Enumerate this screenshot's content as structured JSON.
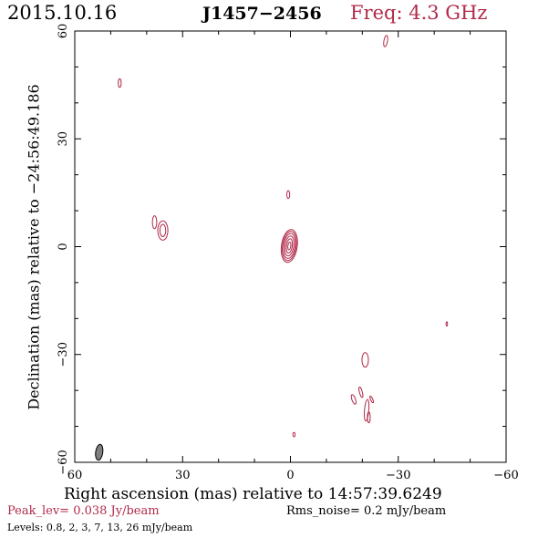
{
  "header": {
    "date": "2015.10.16",
    "source": "J1457−2456",
    "freq": "Freq: 4.3 GHz"
  },
  "footer": {
    "peak": "Peak_lev=  0.038 Jy/beam",
    "rms": "Rms_noise=  0.2 mJy/beam",
    "levels": "Levels: 0.8,    2,    3,    7,   13,   26 mJy/beam"
  },
  "colors": {
    "contour": "#b02a4a",
    "text_accent": "#b02a4a",
    "beam": "#808080"
  },
  "chart_data": {
    "type": "contour",
    "xlabel": "Right ascension (mas) relative to 14:57:39.6249",
    "ylabel": "Declination (mas) relative to −24:56:49.186",
    "xlim": [
      60,
      -60
    ],
    "ylim": [
      -60,
      60
    ],
    "xticks": [
      60,
      30,
      0,
      -30,
      -60
    ],
    "yticks": [
      -60,
      -30,
      0,
      30,
      60
    ],
    "xtick_labels": [
      "60",
      "30",
      "0",
      "−30",
      "−60"
    ],
    "ytick_labels": [
      "−60",
      "−30",
      "0",
      "30",
      "60"
    ],
    "contour_levels_mJy": [
      0.8,
      2,
      3,
      7,
      13,
      26
    ],
    "components": [
      {
        "x": 0.3,
        "y": 0.2,
        "levels": [
          {
            "rx": 2.2,
            "ry": 4.6,
            "rot": 8
          },
          {
            "rx": 1.9,
            "ry": 4.1,
            "rot": 8
          },
          {
            "rx": 1.6,
            "ry": 3.5,
            "rot": 8
          },
          {
            "rx": 1.2,
            "ry": 2.8,
            "rot": 8
          },
          {
            "rx": 0.8,
            "ry": 2.0,
            "rot": 8
          },
          {
            "rx": 0.4,
            "ry": 1.1,
            "rot": 8
          }
        ]
      },
      {
        "x": 35.5,
        "y": 4.5,
        "levels": [
          {
            "rx": 1.4,
            "ry": 2.7,
            "rot": 0
          },
          {
            "rx": 0.8,
            "ry": 1.7,
            "rot": 0
          }
        ]
      },
      {
        "x": 37.8,
        "y": 6.8,
        "levels": [
          {
            "rx": 0.6,
            "ry": 1.8,
            "rot": 0
          }
        ]
      },
      {
        "x": 47.5,
        "y": 45.5,
        "levels": [
          {
            "rx": 0.4,
            "ry": 1.2,
            "rot": 0
          }
        ]
      },
      {
        "x": 0.6,
        "y": 14.5,
        "levels": [
          {
            "rx": 0.4,
            "ry": 1.1,
            "rot": 0
          }
        ]
      },
      {
        "x": -26.5,
        "y": 57.2,
        "levels": [
          {
            "rx": 0.5,
            "ry": 1.6,
            "rot": 10
          }
        ]
      },
      {
        "x": -43.5,
        "y": -21.5,
        "levels": [
          {
            "rx": 0.2,
            "ry": 0.6,
            "rot": 0
          }
        ]
      },
      {
        "x": -20.8,
        "y": -31.5,
        "levels": [
          {
            "rx": 0.9,
            "ry": 2.0,
            "rot": 0
          }
        ]
      },
      {
        "x": -17.6,
        "y": -42.5,
        "levels": [
          {
            "rx": 0.5,
            "ry": 1.4,
            "rot": -20
          }
        ]
      },
      {
        "x": -19.6,
        "y": -40.5,
        "levels": [
          {
            "rx": 0.4,
            "ry": 1.5,
            "rot": -15
          }
        ]
      },
      {
        "x": -21.2,
        "y": -45.5,
        "levels": [
          {
            "rx": 0.6,
            "ry": 3.0,
            "rot": 5
          }
        ]
      },
      {
        "x": -22.6,
        "y": -42.5,
        "levels": [
          {
            "rx": 0.3,
            "ry": 1.0,
            "rot": -25
          }
        ]
      },
      {
        "x": -21.8,
        "y": -47.5,
        "levels": [
          {
            "rx": 0.4,
            "ry": 1.5,
            "rot": 0
          }
        ]
      },
      {
        "x": -1.0,
        "y": -52.3,
        "levels": [
          {
            "rx": 0.3,
            "ry": 0.6,
            "rot": 0
          }
        ]
      }
    ],
    "beam": {
      "x": 53.2,
      "y": -57.2,
      "rx": 1.0,
      "ry": 2.2,
      "rot": 8
    }
  }
}
